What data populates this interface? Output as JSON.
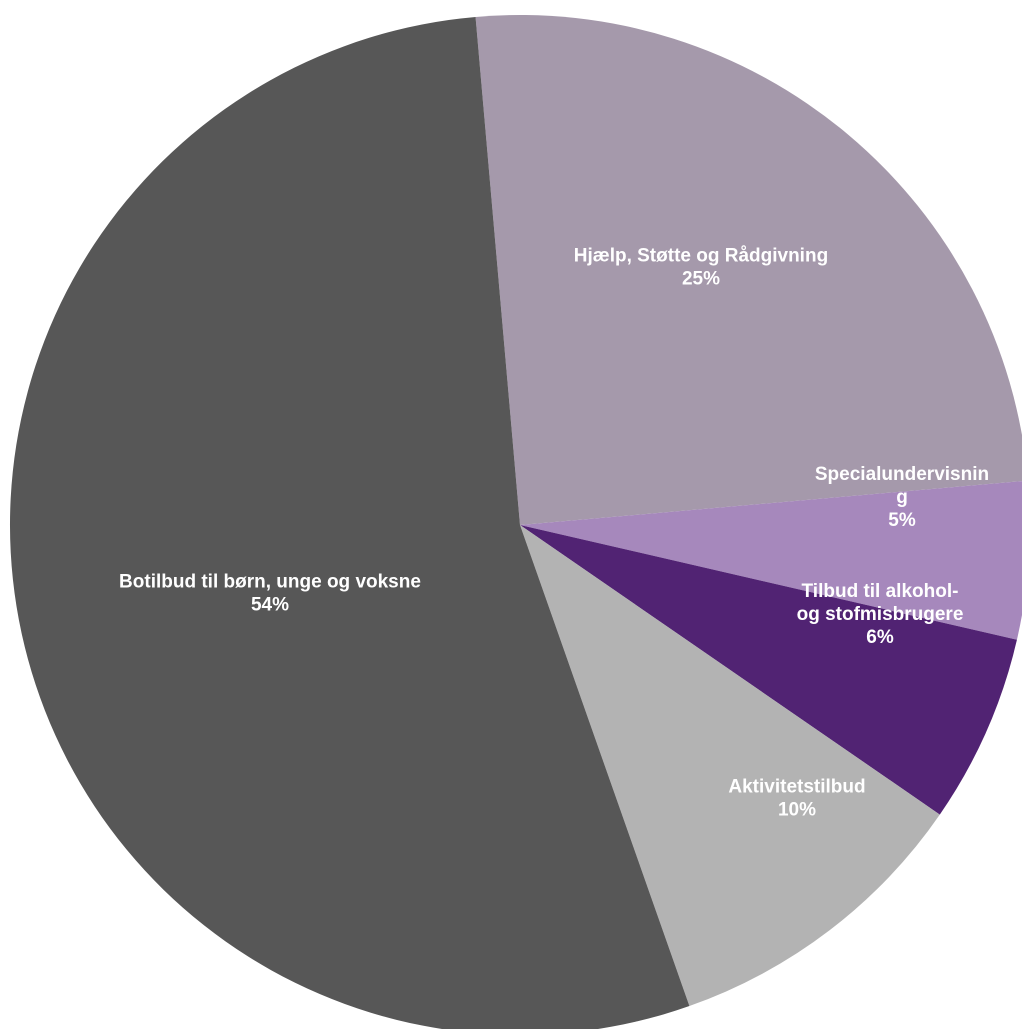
{
  "chart_data": {
    "type": "pie",
    "title": "",
    "slices": [
      {
        "label_lines": [
          "Hjælp, Støtte og Rådgivning"
        ],
        "percent_label": "25%",
        "value": 25,
        "color": "#a599ab"
      },
      {
        "label_lines": [
          "Specialundervisnin",
          "g"
        ],
        "percent_label": "5%",
        "value": 5,
        "color": "#a688bc"
      },
      {
        "label_lines": [
          "Tilbud til alkohol-",
          "og stofmisbrugere"
        ],
        "percent_label": "6%",
        "value": 6,
        "color": "#512373"
      },
      {
        "label_lines": [
          "Aktivitetstilbud"
        ],
        "percent_label": "10%",
        "value": 10,
        "color": "#b3b3b3"
      },
      {
        "label_lines": [
          "Botilbud til børn, unge og voksne"
        ],
        "percent_label": "54%",
        "value": 54,
        "color": "#575757"
      }
    ]
  }
}
